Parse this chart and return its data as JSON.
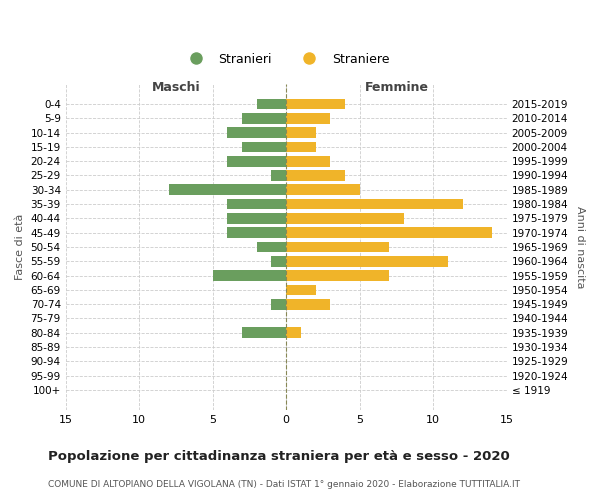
{
  "age_groups": [
    "100+",
    "95-99",
    "90-94",
    "85-89",
    "80-84",
    "75-79",
    "70-74",
    "65-69",
    "60-64",
    "55-59",
    "50-54",
    "45-49",
    "40-44",
    "35-39",
    "30-34",
    "25-29",
    "20-24",
    "15-19",
    "10-14",
    "5-9",
    "0-4"
  ],
  "birth_years": [
    "≤ 1919",
    "1920-1924",
    "1925-1929",
    "1930-1934",
    "1935-1939",
    "1940-1944",
    "1945-1949",
    "1950-1954",
    "1955-1959",
    "1960-1964",
    "1965-1969",
    "1970-1974",
    "1975-1979",
    "1980-1984",
    "1985-1989",
    "1990-1994",
    "1995-1999",
    "2000-2004",
    "2005-2009",
    "2010-2014",
    "2015-2019"
  ],
  "maschi": [
    0,
    0,
    0,
    0,
    3,
    0,
    1,
    0,
    5,
    1,
    2,
    4,
    4,
    4,
    8,
    1,
    4,
    3,
    4,
    3,
    2
  ],
  "femmine": [
    0,
    0,
    0,
    0,
    1,
    0,
    3,
    2,
    7,
    11,
    7,
    14,
    8,
    12,
    5,
    4,
    3,
    2,
    2,
    3,
    4
  ],
  "maschi_color": "#6a9e5e",
  "femmine_color": "#f0b429",
  "background_color": "#ffffff",
  "grid_color": "#cccccc",
  "title": "Popolazione per cittadinanza straniera per età e sesso - 2020",
  "subtitle": "COMUNE DI ALTOPIANO DELLA VIGOLANA (TN) - Dati ISTAT 1° gennaio 2020 - Elaborazione TUTTITALIA.IT",
  "xlabel_left": "Maschi",
  "xlabel_right": "Femmine",
  "ylabel": "Fasce di età",
  "ylabel_right": "Anni di nascita",
  "legend_maschi": "Stranieri",
  "legend_femmine": "Straniere",
  "xlim": 15
}
